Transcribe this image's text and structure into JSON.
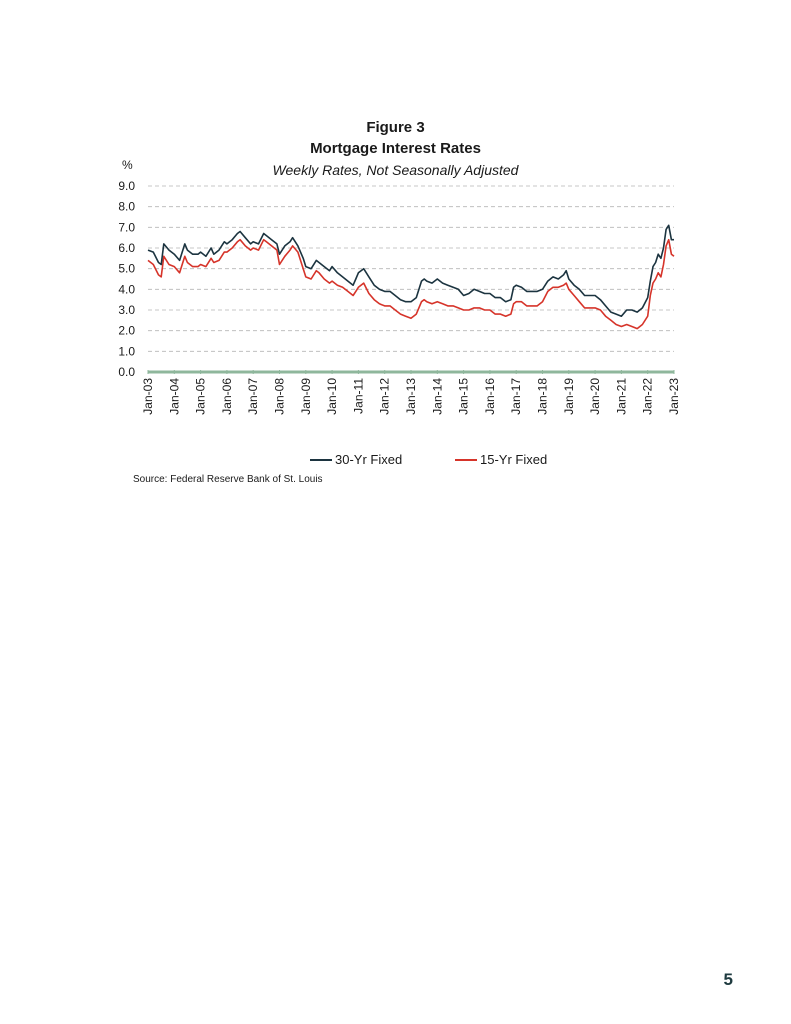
{
  "page_number": "5",
  "chart_data": {
    "type": "line",
    "title": "Figure 3",
    "subtitle": "Mortgage Interest Rates",
    "note": "Weekly Rates, Not Seasonally Adjusted",
    "ylabel": "%",
    "ylim": [
      0,
      9
    ],
    "yticks": [
      "0.0",
      "1.0",
      "2.0",
      "3.0",
      "4.0",
      "5.0",
      "6.0",
      "7.0",
      "8.0",
      "9.0"
    ],
    "xticks": [
      "Jan-03",
      "Jan-04",
      "Jan-05",
      "Jan-06",
      "Jan-07",
      "Jan-08",
      "Jan-09",
      "Jan-10",
      "Jan-11",
      "Jan-12",
      "Jan-13",
      "Jan-14",
      "Jan-15",
      "Jan-16",
      "Jan-17",
      "Jan-18",
      "Jan-19",
      "Jan-20",
      "Jan-21",
      "Jan-22",
      "Jan-23"
    ],
    "grid": true,
    "legend_position": "bottom",
    "source": "Source: Federal Reserve Bank of St. Louis",
    "colors": {
      "30yr": "#1c3440",
      "15yr": "#d6342a",
      "axis": "#8fb79c",
      "grid": "#b5b5b5"
    },
    "series": [
      {
        "name": "30-Yr Fixed",
        "x": [
          2003.0,
          2003.2,
          2003.4,
          2003.5,
          2003.6,
          2003.8,
          2004.0,
          2004.2,
          2004.4,
          2004.5,
          2004.7,
          2004.9,
          2005.0,
          2005.2,
          2005.4,
          2005.5,
          2005.7,
          2005.9,
          2006.0,
          2006.2,
          2006.4,
          2006.5,
          2006.7,
          2006.9,
          2007.0,
          2007.2,
          2007.4,
          2007.5,
          2007.7,
          2007.9,
          2008.0,
          2008.2,
          2008.4,
          2008.5,
          2008.7,
          2008.9,
          2009.0,
          2009.2,
          2009.4,
          2009.5,
          2009.7,
          2009.9,
          2010.0,
          2010.2,
          2010.4,
          2010.6,
          2010.8,
          2010.9,
          2011.0,
          2011.2,
          2011.4,
          2011.6,
          2011.8,
          2012.0,
          2012.2,
          2012.4,
          2012.6,
          2012.8,
          2013.0,
          2013.2,
          2013.4,
          2013.5,
          2013.6,
          2013.8,
          2014.0,
          2014.2,
          2014.4,
          2014.6,
          2014.8,
          2015.0,
          2015.2,
          2015.4,
          2015.6,
          2015.8,
          2016.0,
          2016.2,
          2016.4,
          2016.6,
          2016.8,
          2016.9,
          2017.0,
          2017.2,
          2017.4,
          2017.6,
          2017.8,
          2018.0,
          2018.2,
          2018.4,
          2018.6,
          2018.8,
          2018.9,
          2019.0,
          2019.2,
          2019.4,
          2019.6,
          2019.8,
          2020.0,
          2020.2,
          2020.4,
          2020.6,
          2020.8,
          2021.0,
          2021.2,
          2021.4,
          2021.6,
          2021.8,
          2022.0,
          2022.1,
          2022.2,
          2022.3,
          2022.4,
          2022.5,
          2022.6,
          2022.7,
          2022.8,
          2022.9,
          2023.0
        ],
        "values": [
          5.9,
          5.8,
          5.3,
          5.2,
          6.2,
          5.9,
          5.7,
          5.4,
          6.2,
          5.9,
          5.7,
          5.7,
          5.8,
          5.6,
          6.0,
          5.7,
          5.9,
          6.3,
          6.2,
          6.4,
          6.7,
          6.8,
          6.5,
          6.2,
          6.3,
          6.2,
          6.7,
          6.6,
          6.4,
          6.2,
          5.7,
          6.1,
          6.3,
          6.5,
          6.1,
          5.5,
          5.1,
          5.0,
          5.4,
          5.3,
          5.1,
          4.9,
          5.1,
          4.8,
          4.6,
          4.4,
          4.2,
          4.5,
          4.8,
          5.0,
          4.6,
          4.2,
          4.0,
          3.9,
          3.9,
          3.7,
          3.5,
          3.4,
          3.4,
          3.6,
          4.4,
          4.5,
          4.4,
          4.3,
          4.5,
          4.3,
          4.2,
          4.1,
          4.0,
          3.7,
          3.8,
          4.0,
          3.9,
          3.8,
          3.8,
          3.6,
          3.6,
          3.4,
          3.5,
          4.1,
          4.2,
          4.1,
          3.9,
          3.9,
          3.9,
          4.0,
          4.4,
          4.6,
          4.5,
          4.7,
          4.9,
          4.5,
          4.2,
          4.0,
          3.7,
          3.7,
          3.7,
          3.5,
          3.2,
          2.9,
          2.8,
          2.7,
          3.0,
          3.0,
          2.9,
          3.1,
          3.6,
          4.4,
          5.1,
          5.3,
          5.7,
          5.5,
          6.0,
          6.9,
          7.1,
          6.4,
          6.4
        ]
      },
      {
        "name": "15-Yr Fixed",
        "x": [
          2003.0,
          2003.2,
          2003.4,
          2003.5,
          2003.6,
          2003.8,
          2004.0,
          2004.2,
          2004.4,
          2004.5,
          2004.7,
          2004.9,
          2005.0,
          2005.2,
          2005.4,
          2005.5,
          2005.7,
          2005.9,
          2006.0,
          2006.2,
          2006.4,
          2006.5,
          2006.7,
          2006.9,
          2007.0,
          2007.2,
          2007.4,
          2007.5,
          2007.7,
          2007.9,
          2008.0,
          2008.2,
          2008.4,
          2008.5,
          2008.7,
          2008.9,
          2009.0,
          2009.2,
          2009.4,
          2009.5,
          2009.7,
          2009.9,
          2010.0,
          2010.2,
          2010.4,
          2010.6,
          2010.8,
          2010.9,
          2011.0,
          2011.2,
          2011.4,
          2011.6,
          2011.8,
          2012.0,
          2012.2,
          2012.4,
          2012.6,
          2012.8,
          2013.0,
          2013.2,
          2013.4,
          2013.5,
          2013.6,
          2013.8,
          2014.0,
          2014.2,
          2014.4,
          2014.6,
          2014.8,
          2015.0,
          2015.2,
          2015.4,
          2015.6,
          2015.8,
          2016.0,
          2016.2,
          2016.4,
          2016.6,
          2016.8,
          2016.9,
          2017.0,
          2017.2,
          2017.4,
          2017.6,
          2017.8,
          2018.0,
          2018.2,
          2018.4,
          2018.6,
          2018.8,
          2018.9,
          2019.0,
          2019.2,
          2019.4,
          2019.6,
          2019.8,
          2020.0,
          2020.2,
          2020.4,
          2020.6,
          2020.8,
          2021.0,
          2021.2,
          2021.4,
          2021.6,
          2021.8,
          2022.0,
          2022.1,
          2022.2,
          2022.3,
          2022.4,
          2022.5,
          2022.6,
          2022.7,
          2022.8,
          2022.9,
          2023.0
        ],
        "values": [
          5.4,
          5.2,
          4.7,
          4.6,
          5.6,
          5.2,
          5.1,
          4.8,
          5.6,
          5.3,
          5.1,
          5.1,
          5.2,
          5.1,
          5.5,
          5.3,
          5.4,
          5.8,
          5.8,
          6.0,
          6.3,
          6.4,
          6.1,
          5.9,
          6.0,
          5.9,
          6.4,
          6.3,
          6.1,
          5.9,
          5.2,
          5.6,
          5.9,
          6.1,
          5.8,
          5.0,
          4.6,
          4.5,
          4.9,
          4.8,
          4.5,
          4.3,
          4.4,
          4.2,
          4.1,
          3.9,
          3.7,
          3.9,
          4.1,
          4.3,
          3.8,
          3.5,
          3.3,
          3.2,
          3.2,
          3.0,
          2.8,
          2.7,
          2.6,
          2.8,
          3.4,
          3.5,
          3.4,
          3.3,
          3.4,
          3.3,
          3.2,
          3.2,
          3.1,
          3.0,
          3.0,
          3.1,
          3.1,
          3.0,
          3.0,
          2.8,
          2.8,
          2.7,
          2.8,
          3.3,
          3.4,
          3.4,
          3.2,
          3.2,
          3.2,
          3.4,
          3.9,
          4.1,
          4.1,
          4.2,
          4.3,
          4.0,
          3.7,
          3.4,
          3.1,
          3.1,
          3.1,
          3.0,
          2.7,
          2.5,
          2.3,
          2.2,
          2.3,
          2.2,
          2.1,
          2.3,
          2.7,
          3.7,
          4.3,
          4.5,
          4.8,
          4.6,
          5.2,
          6.1,
          6.4,
          5.7,
          5.6
        ]
      }
    ]
  }
}
